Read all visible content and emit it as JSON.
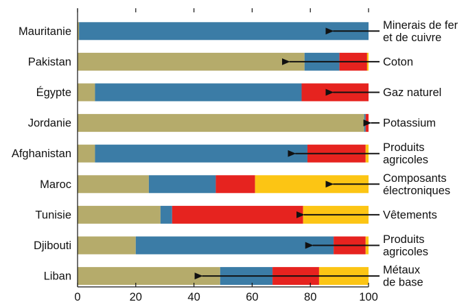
{
  "chart_data": {
    "type": "bar",
    "orientation": "horizontal",
    "stacked": true,
    "xlim": [
      0,
      100
    ],
    "x_ticks": [
      "0",
      "20",
      "40",
      "60",
      "80",
      "100"
    ],
    "grid": false,
    "categories": [
      "Mauritanie",
      "Pakistan",
      "Égypte",
      "Jordanie",
      "Afghanistan",
      "Maroc",
      "Tunisie",
      "Djibouti",
      "Liban"
    ],
    "series": [
      {
        "color": "#b5ab6b",
        "values": [
          0.5,
          78,
          6,
          98.5,
          6,
          24.5,
          28.5,
          20,
          49
        ]
      },
      {
        "color": "#3b7ca6",
        "values": [
          99.5,
          12,
          71,
          0.5,
          73,
          23,
          4,
          68,
          18
        ]
      },
      {
        "color": "#e6231f",
        "values": [
          0,
          9.5,
          23,
          1,
          20,
          13.5,
          45,
          11,
          16
        ]
      },
      {
        "color": "#fcc514",
        "values": [
          0,
          0.5,
          0,
          0,
          1,
          39,
          22.5,
          1,
          17
        ]
      }
    ],
    "annotations": [
      {
        "lines": [
          "Minerais de fer",
          "et de cuivre"
        ],
        "arrow_to": 85
      },
      {
        "lines": [
          "Coton"
        ],
        "arrow_to": 70
      },
      {
        "lines": [
          "Gaz naturel"
        ],
        "arrow_to": 85
      },
      {
        "lines": [
          "Potassium"
        ],
        "arrow_to": 98
      },
      {
        "lines": [
          "Produits",
          "agricoles"
        ],
        "arrow_to": 72
      },
      {
        "lines": [
          "Composants",
          "électroniques"
        ],
        "arrow_to": 85
      },
      {
        "lines": [
          "Vêtements"
        ],
        "arrow_to": 75
      },
      {
        "lines": [
          "Produits",
          "agricoles"
        ],
        "arrow_to": 78
      },
      {
        "lines": [
          "Métaux",
          "de base"
        ],
        "arrow_to": 40
      }
    ]
  }
}
